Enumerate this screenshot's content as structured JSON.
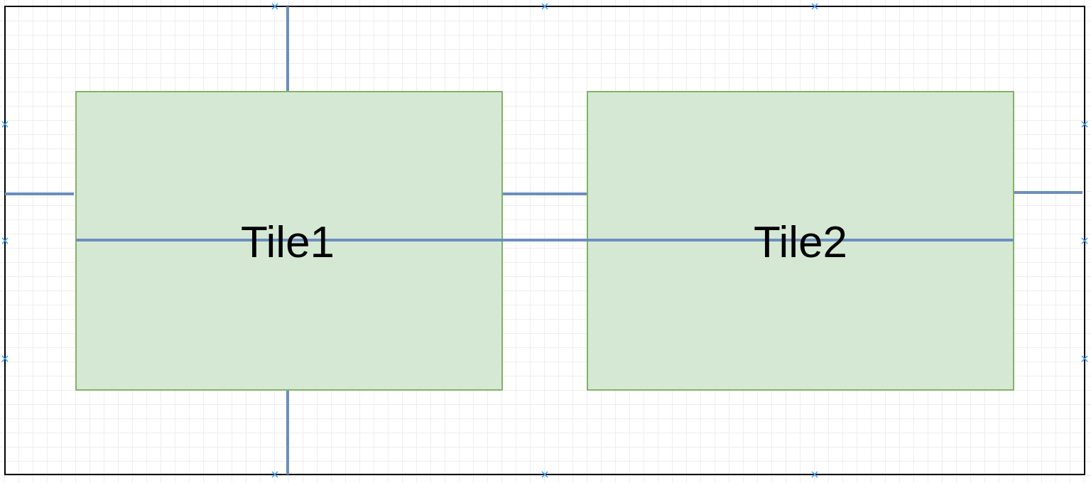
{
  "diagram": {
    "tiles": [
      {
        "id": "tile1",
        "label": "Tile1"
      },
      {
        "id": "tile2",
        "label": "Tile2"
      }
    ],
    "colors": {
      "tile_fill": "#d5e8d4",
      "tile_stroke": "#82b366",
      "connector": "#6c8ebf",
      "frame": "#000000",
      "port_marker": "#3399ff"
    }
  }
}
